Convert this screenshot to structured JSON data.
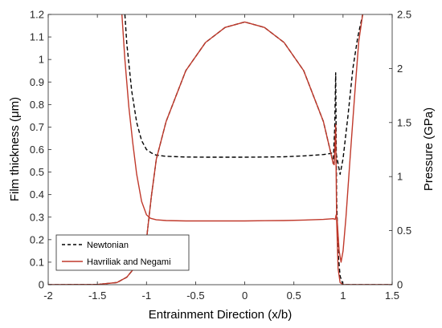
{
  "chart_data": {
    "type": "line",
    "xlabel": "Entrainment Direction (x/b)",
    "ylabel_left": "Film thickness (μm)",
    "ylabel_right": "Pressure (GPa)",
    "xlim": [
      -2,
      1.5
    ],
    "ylim_left": [
      0,
      1.2
    ],
    "ylim_right": [
      0,
      2.5
    ],
    "xticks": [
      "-2",
      "-1.5",
      "-1",
      "-0.5",
      "0",
      "0.5",
      "1",
      "1.5"
    ],
    "yticks_left": [
      "0",
      "0.1",
      "0.2",
      "0.3",
      "0.4",
      "0.5",
      "0.6",
      "0.7",
      "0.8",
      "0.9",
      "1",
      "1.1",
      "1.2"
    ],
    "yticks_right": [
      "0",
      "0.5",
      "1",
      "1.5",
      "2",
      "2.5"
    ],
    "grid": false,
    "legend_position": "bottom-left",
    "colors": {
      "newtonian": "#000000",
      "havriliak": "#c0392b"
    },
    "series": [
      {
        "name": "Newtonian",
        "style": "dashed",
        "film_thickness_um": {
          "x": [
            -1.22,
            -1.2,
            -1.15,
            -1.1,
            -1.05,
            -1.0,
            -0.95,
            -0.9,
            -0.8,
            -0.6,
            -0.4,
            -0.2,
            0,
            0.2,
            0.4,
            0.6,
            0.8,
            0.88,
            0.9,
            0.92,
            0.94,
            0.97,
            1.0,
            1.05,
            1.1,
            1.15,
            1.2
          ],
          "y": [
            1.2,
            1.07,
            0.86,
            0.72,
            0.64,
            0.6,
            0.585,
            0.575,
            0.57,
            0.567,
            0.566,
            0.566,
            0.566,
            0.567,
            0.568,
            0.572,
            0.578,
            0.583,
            0.59,
            0.6,
            0.56,
            0.49,
            0.56,
            0.75,
            0.96,
            1.1,
            1.2
          ]
        },
        "pressure_gpa": {
          "x": [
            -2.0,
            -1.5,
            -1.3,
            -1.2,
            -1.1,
            -1.0,
            -0.95,
            -0.9,
            -0.8,
            -0.6,
            -0.4,
            -0.2,
            0,
            0.2,
            0.4,
            0.6,
            0.8,
            0.88,
            0.9,
            0.915,
            0.925,
            0.935,
            0.95,
            0.97,
            1.0,
            1.5
          ],
          "y": [
            0,
            0.002,
            0.02,
            0.07,
            0.18,
            0.42,
            0.82,
            1.16,
            1.51,
            1.98,
            2.24,
            2.38,
            2.43,
            2.38,
            2.24,
            1.98,
            1.51,
            1.2,
            1.12,
            1.45,
            1.96,
            0.8,
            0.3,
            0.08,
            0,
            0
          ]
        }
      },
      {
        "name": "Havriliak and Negami",
        "style": "solid",
        "film_thickness_um": {
          "x": [
            -1.25,
            -1.22,
            -1.18,
            -1.14,
            -1.1,
            -1.05,
            -1.0,
            -0.96,
            -0.9,
            -0.8,
            -0.6,
            -0.4,
            -0.2,
            0,
            0.2,
            0.4,
            0.6,
            0.8,
            0.9,
            0.92,
            0.93,
            0.94,
            0.96,
            0.98,
            1.0,
            1.03,
            1.07,
            1.12,
            1.16,
            1.2
          ],
          "y": [
            1.2,
            1.0,
            0.79,
            0.63,
            0.49,
            0.37,
            0.31,
            0.295,
            0.288,
            0.285,
            0.283,
            0.283,
            0.283,
            0.283,
            0.284,
            0.285,
            0.287,
            0.29,
            0.293,
            0.29,
            0.31,
            0.29,
            0.15,
            0.1,
            0.15,
            0.3,
            0.55,
            0.85,
            1.08,
            1.2
          ]
        },
        "pressure_gpa": {
          "x": [
            -2.0,
            -1.5,
            -1.3,
            -1.2,
            -1.1,
            -1.0,
            -0.95,
            -0.9,
            -0.8,
            -0.6,
            -0.4,
            -0.2,
            0,
            0.2,
            0.4,
            0.6,
            0.8,
            0.88,
            0.9,
            0.91,
            0.925,
            0.935,
            0.95,
            0.97,
            1.0,
            1.5
          ],
          "y": [
            0,
            0.002,
            0.02,
            0.07,
            0.18,
            0.42,
            0.82,
            1.16,
            1.51,
            1.98,
            2.24,
            2.38,
            2.43,
            2.38,
            2.24,
            1.98,
            1.51,
            1.2,
            1.12,
            1.11,
            1.48,
            0.6,
            0.15,
            0.02,
            0,
            0
          ]
        }
      }
    ]
  }
}
